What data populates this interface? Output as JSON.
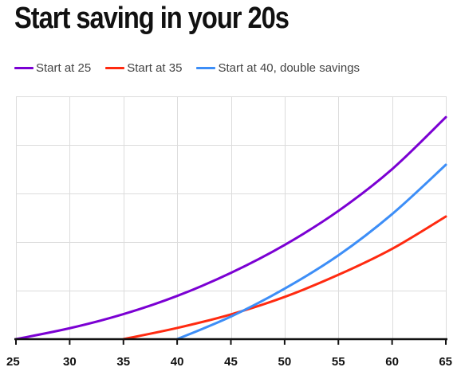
{
  "chart_data": {
    "type": "line",
    "title": "Start saving in your 20s",
    "xlabel": "",
    "ylabel": "",
    "xlim": [
      25,
      65
    ],
    "ylim": [
      0,
      1
    ],
    "x_ticks": [
      25,
      30,
      35,
      40,
      45,
      50,
      55,
      60,
      65
    ],
    "y_grid_count": 5,
    "grid": true,
    "legend_position": "top",
    "series": [
      {
        "name": "Start at 25",
        "color": "#7b00d3",
        "x": [
          25,
          30,
          35,
          40,
          45,
          50,
          55,
          60,
          65
        ],
        "y": [
          0,
          0.045,
          0.103,
          0.178,
          0.273,
          0.388,
          0.528,
          0.7,
          0.914
        ]
      },
      {
        "name": "Start at 35",
        "color": "#ff2a10",
        "x": [
          35,
          40,
          45,
          50,
          55,
          60,
          65
        ],
        "y": [
          0,
          0.046,
          0.102,
          0.174,
          0.265,
          0.372,
          0.505
        ]
      },
      {
        "name": "Start at 40, double savings",
        "color": "#3d8ef7",
        "x": [
          40,
          45,
          50,
          55,
          60,
          65
        ],
        "y": [
          0,
          0.093,
          0.208,
          0.345,
          0.515,
          0.718
        ]
      }
    ]
  }
}
